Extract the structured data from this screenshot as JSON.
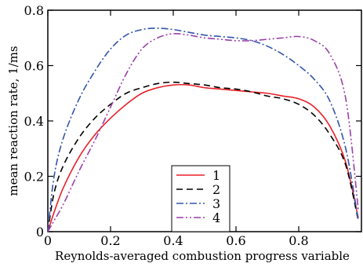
{
  "chart_data": {
    "type": "line",
    "title": "",
    "xlabel": "Reynolds-averaged combustion progress variable",
    "ylabel": "mean reaction rate, 1/ms",
    "xlim": [
      0,
      1
    ],
    "ylim": [
      0,
      0.8
    ],
    "xticks": [
      0,
      0.2,
      0.4,
      0.6,
      0.8
    ],
    "xtick_labels": [
      "0",
      "0.2",
      "0.4",
      "0.6",
      "0.8"
    ],
    "yticks": [
      0,
      0.2,
      0.4,
      0.6,
      0.8
    ],
    "ytick_labels": [
      "0",
      "0.2",
      "0.4",
      "0.6",
      "0.8"
    ],
    "grid": false,
    "legend_position": "bottom-center",
    "series": [
      {
        "name": "1",
        "color": "#e8222a",
        "dash": "solid",
        "x": [
          0.0,
          0.02,
          0.05,
          0.1,
          0.15,
          0.2,
          0.25,
          0.3,
          0.35,
          0.4,
          0.45,
          0.5,
          0.55,
          0.6,
          0.65,
          0.7,
          0.75,
          0.8,
          0.85,
          0.9,
          0.95,
          0.99
        ],
        "y": [
          0.0,
          0.07,
          0.16,
          0.27,
          0.35,
          0.41,
          0.46,
          0.5,
          0.52,
          0.53,
          0.53,
          0.52,
          0.515,
          0.51,
          0.505,
          0.5,
          0.49,
          0.48,
          0.45,
          0.38,
          0.25,
          0.05
        ]
      },
      {
        "name": "2",
        "color": "#000000",
        "dash": "dashed",
        "x": [
          0.0,
          0.02,
          0.05,
          0.1,
          0.15,
          0.2,
          0.25,
          0.3,
          0.35,
          0.4,
          0.45,
          0.5,
          0.55,
          0.6,
          0.65,
          0.7,
          0.75,
          0.8,
          0.85,
          0.9,
          0.95,
          0.99
        ],
        "y": [
          0.0,
          0.14,
          0.24,
          0.34,
          0.41,
          0.46,
          0.5,
          0.52,
          0.535,
          0.54,
          0.535,
          0.53,
          0.52,
          0.515,
          0.505,
          0.49,
          0.48,
          0.46,
          0.42,
          0.35,
          0.24,
          0.04
        ]
      },
      {
        "name": "3",
        "color": "#3355aa",
        "dash": "dashdot",
        "x": [
          0.0,
          0.02,
          0.05,
          0.1,
          0.15,
          0.2,
          0.25,
          0.3,
          0.35,
          0.4,
          0.45,
          0.5,
          0.55,
          0.6,
          0.65,
          0.7,
          0.75,
          0.8,
          0.85,
          0.9,
          0.95,
          0.99
        ],
        "y": [
          0.0,
          0.2,
          0.34,
          0.48,
          0.58,
          0.66,
          0.71,
          0.73,
          0.735,
          0.73,
          0.72,
          0.71,
          0.705,
          0.7,
          0.69,
          0.67,
          0.64,
          0.6,
          0.55,
          0.47,
          0.3,
          0.04
        ]
      },
      {
        "name": "4",
        "color": "#9a3fa8",
        "dash": "dashdotdot",
        "x": [
          0.0,
          0.02,
          0.05,
          0.1,
          0.15,
          0.2,
          0.25,
          0.3,
          0.35,
          0.4,
          0.45,
          0.5,
          0.55,
          0.6,
          0.65,
          0.7,
          0.75,
          0.8,
          0.85,
          0.9,
          0.95,
          0.99
        ],
        "y": [
          0.0,
          0.04,
          0.1,
          0.22,
          0.33,
          0.45,
          0.57,
          0.66,
          0.7,
          0.715,
          0.71,
          0.7,
          0.695,
          0.69,
          0.69,
          0.695,
          0.7,
          0.705,
          0.69,
          0.64,
          0.48,
          0.08
        ]
      }
    ]
  }
}
